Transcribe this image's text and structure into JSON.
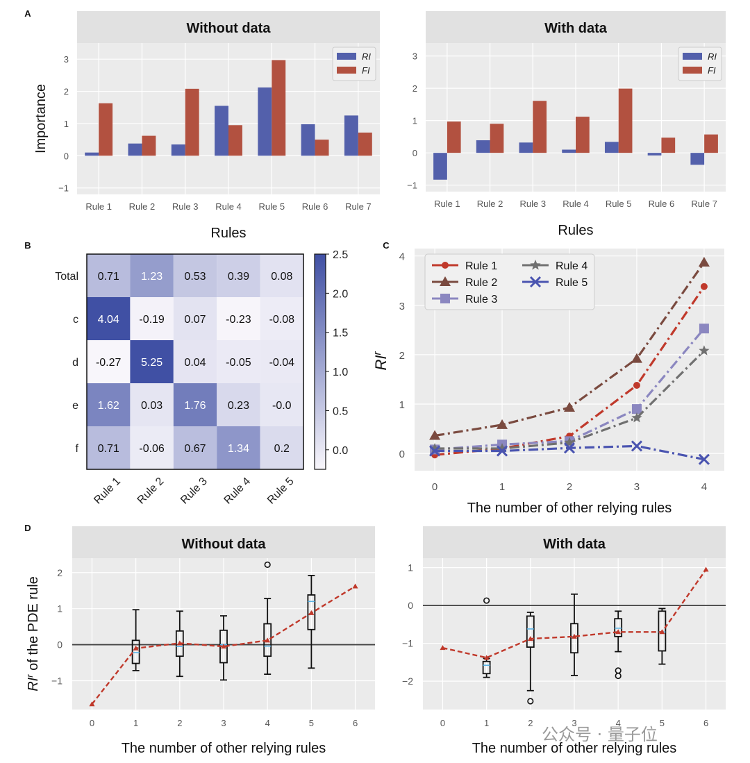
{
  "watermark": "公众号 · 量子位",
  "colors": {
    "ri": "#5360ab",
    "fi": "#b25140",
    "panel_bg": "#ebebeb",
    "title_bg": "#e1e1e1",
    "grid": "#ffffff"
  },
  "chart_data": [
    {
      "id": "A-left",
      "panel_label": "A",
      "type": "bar",
      "title": "Without data",
      "xlabel": "Rules",
      "ylabel": "Importance",
      "categories": [
        "Rule 1",
        "Rule 2",
        "Rule 3",
        "Rule 4",
        "Rule 5",
        "Rule 6",
        "Rule 7"
      ],
      "series": [
        {
          "name": "RI",
          "values": [
            0.1,
            0.38,
            0.35,
            1.55,
            2.12,
            0.98,
            1.25
          ]
        },
        {
          "name": "FI",
          "values": [
            1.63,
            0.62,
            2.08,
            0.95,
            2.97,
            0.5,
            0.72
          ]
        }
      ],
      "ylim": [
        -1.2,
        3.5
      ],
      "yticks": [
        "−1",
        "0",
        "1",
        "2",
        "3"
      ],
      "legend": "top-right"
    },
    {
      "id": "A-right",
      "type": "bar",
      "title": "With data",
      "xlabel": "Rules",
      "ylabel": "",
      "categories": [
        "Rule 1",
        "Rule 2",
        "Rule 3",
        "Rule 4",
        "Rule 5",
        "Rule 6",
        "Rule 7"
      ],
      "series": [
        {
          "name": "RI",
          "values": [
            -0.83,
            0.39,
            0.32,
            0.1,
            0.34,
            -0.08,
            -0.37
          ]
        },
        {
          "name": "FI",
          "values": [
            0.97,
            0.9,
            1.61,
            1.12,
            1.99,
            0.47,
            0.57
          ]
        }
      ],
      "ylim": [
        -1.2,
        3.4
      ],
      "yticks": [
        "−1",
        "0",
        "1",
        "2",
        "3"
      ],
      "legend": "top-right"
    },
    {
      "id": "B",
      "panel_label": "B",
      "type": "heatmap",
      "rows": [
        "Total",
        "c",
        "d",
        "e",
        "f"
      ],
      "cols": [
        "Rule 1",
        "Rule 2",
        "Rule 3",
        "Rule 4",
        "Rule 5"
      ],
      "cells": [
        [
          "0.71",
          "1.23",
          "0.53",
          "0.39",
          "0.08"
        ],
        [
          "4.04",
          "-0.19",
          "0.07",
          "-0.23",
          "-0.08"
        ],
        [
          "-0.27",
          "5.25",
          "0.04",
          "-0.05",
          "-0.04"
        ],
        [
          "1.62",
          "0.03",
          "1.76",
          "0.23",
          "-0.0"
        ],
        [
          "0.71",
          "-0.06",
          "0.67",
          "1.34",
          "0.2"
        ]
      ],
      "colorbar": {
        "min": -0.25,
        "max": 2.5,
        "ticks": [
          "2.5",
          "2.0",
          "1.5",
          "1.0",
          "0.5",
          "0.0"
        ]
      }
    },
    {
      "id": "C",
      "panel_label": "C",
      "type": "line",
      "xlabel": "The number of other relying rules",
      "ylabel": "RI",
      "ylabel_sup": "r",
      "x": [
        0,
        1,
        2,
        3,
        4
      ],
      "xlim": [
        -0.3,
        4.3
      ],
      "ylim": [
        -0.35,
        4.15
      ],
      "xticks": [
        "0",
        "1",
        "2",
        "3",
        "4"
      ],
      "yticks": [
        "0",
        "1",
        "2",
        "3",
        "4"
      ],
      "series": [
        {
          "name": "Rule 1",
          "color": "#c0392b",
          "marker": "circle",
          "values": [
            -0.03,
            0.1,
            0.35,
            1.38,
            3.38
          ]
        },
        {
          "name": "Rule 2",
          "color": "#7a4a3f",
          "marker": "triangle",
          "values": [
            0.36,
            0.58,
            0.93,
            1.92,
            3.87
          ]
        },
        {
          "name": "Rule 3",
          "color": "#8b87c0",
          "marker": "square",
          "values": [
            0.08,
            0.18,
            0.25,
            0.9,
            2.53
          ]
        },
        {
          "name": "Rule 4",
          "color": "#707070",
          "marker": "star",
          "values": [
            0.1,
            0.1,
            0.22,
            0.72,
            2.08
          ]
        },
        {
          "name": "Rule 5",
          "color": "#4a54b0",
          "marker": "x",
          "values": [
            0.05,
            0.05,
            0.11,
            0.15,
            -0.12
          ]
        }
      ],
      "legend": "top-left"
    },
    {
      "id": "D-left",
      "panel_label": "D",
      "type": "box",
      "title": "Without data",
      "xlabel": "The number of other relying rules",
      "ylabel": "of the PDE rule",
      "ylabel_prefix": "RI",
      "ylabel_sup": "r",
      "xlim": [
        -0.45,
        6.45
      ],
      "ylim": [
        -1.8,
        2.4
      ],
      "xticks": [
        "0",
        "1",
        "2",
        "3",
        "4",
        "5",
        "6"
      ],
      "yticks": [
        "−1",
        "0",
        "1",
        "2"
      ],
      "boxes": [
        {
          "x": 1,
          "whislo": -0.72,
          "q1": -0.52,
          "med": -0.22,
          "q3": 0.12,
          "whishi": 0.97,
          "fliers": []
        },
        {
          "x": 2,
          "whislo": -0.88,
          "q1": -0.32,
          "med": -0.05,
          "q3": 0.38,
          "whishi": 0.93,
          "fliers": []
        },
        {
          "x": 3,
          "whislo": -0.98,
          "q1": -0.5,
          "med": 0.0,
          "q3": 0.4,
          "whishi": 0.8,
          "fliers": []
        },
        {
          "x": 4,
          "whislo": -0.82,
          "q1": -0.32,
          "med": -0.04,
          "q3": 0.58,
          "whishi": 1.28,
          "fliers": [
            2.22
          ]
        },
        {
          "x": 5,
          "whislo": -0.65,
          "q1": 0.42,
          "med": 1.2,
          "q3": 1.38,
          "whishi": 1.92,
          "fliers": []
        }
      ],
      "trend": {
        "x": [
          0,
          1,
          2,
          3,
          4,
          5,
          6
        ],
        "values": [
          -1.65,
          -0.1,
          0.04,
          -0.05,
          0.12,
          0.88,
          1.62
        ]
      }
    },
    {
      "id": "D-right",
      "type": "box",
      "title": "With data",
      "xlabel": "The number of other relying rules",
      "xlim": [
        -0.45,
        6.45
      ],
      "ylim": [
        -2.75,
        1.25
      ],
      "xticks": [
        "0",
        "1",
        "2",
        "3",
        "4",
        "5",
        "6"
      ],
      "yticks": [
        "−2",
        "−1",
        "0",
        "1"
      ],
      "boxes": [
        {
          "x": 1,
          "whislo": -1.9,
          "q1": -1.8,
          "med": -1.58,
          "q3": -1.48,
          "whishi": -1.4,
          "fliers": [
            0.13
          ]
        },
        {
          "x": 2,
          "whislo": -2.25,
          "q1": -1.1,
          "med": -0.62,
          "q3": -0.28,
          "whishi": -0.18,
          "fliers": [
            -2.53
          ]
        },
        {
          "x": 3,
          "whislo": -1.85,
          "q1": -1.25,
          "med": -0.82,
          "q3": -0.48,
          "whishi": 0.3,
          "fliers": []
        },
        {
          "x": 4,
          "whislo": -1.22,
          "q1": -0.82,
          "med": -0.6,
          "q3": -0.35,
          "whishi": -0.15,
          "fliers": [
            -1.72,
            -1.86
          ]
        },
        {
          "x": 5,
          "whislo": -1.55,
          "q1": -1.2,
          "med": -0.7,
          "q3": -0.15,
          "whishi": -0.08,
          "fliers": []
        }
      ],
      "trend": {
        "x": [
          0,
          1,
          2,
          3,
          4,
          5,
          6
        ],
        "values": [
          -1.12,
          -1.38,
          -0.88,
          -0.82,
          -0.7,
          -0.7,
          0.95
        ]
      }
    }
  ]
}
